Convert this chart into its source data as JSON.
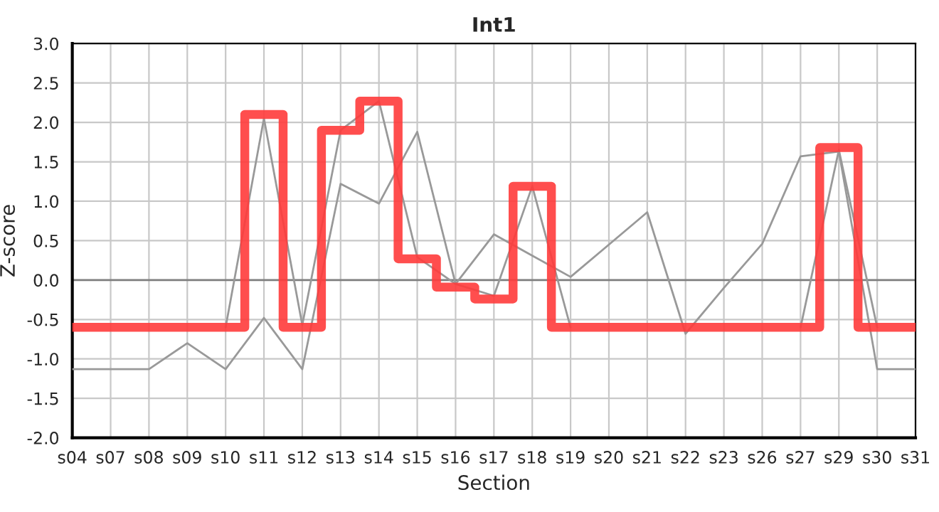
{
  "chart_data": {
    "type": "line",
    "title": "Int1",
    "xlabel": "Section",
    "ylabel": "Z-score",
    "categories": [
      "s04",
      "s07",
      "s08",
      "s09",
      "s10",
      "s11",
      "s12",
      "s13",
      "s14",
      "s15",
      "s16",
      "s17",
      "s18",
      "s19",
      "s20",
      "s21",
      "s22",
      "s23",
      "s26",
      "s27",
      "s29",
      "s30",
      "s31"
    ],
    "series": [
      {
        "color": "#999999",
        "values": [
          -1.13,
          -1.13,
          -1.13,
          -0.8,
          -1.13,
          -0.48,
          -1.13,
          1.22,
          0.97,
          1.88,
          -0.05,
          0.58,
          0.31,
          0.04,
          0.45,
          0.86,
          -0.68,
          -0.1,
          0.46,
          1.57,
          1.63,
          -1.13,
          -1.13
        ]
      },
      {
        "color": "#999999",
        "values": [
          null,
          null,
          null,
          null,
          -0.6,
          2.05,
          -0.57,
          1.9,
          2.27,
          0.29,
          -0.05,
          -0.2,
          1.19,
          -0.6,
          null,
          null,
          null,
          null,
          null,
          -0.6,
          1.65,
          -0.6,
          null
        ]
      },
      {
        "type": "step",
        "color": "#ff3b3b",
        "values": [
          -0.6,
          -0.6,
          -0.6,
          -0.6,
          -0.6,
          2.1,
          -0.6,
          1.9,
          2.27,
          0.27,
          -0.09,
          -0.24,
          1.19,
          -0.6,
          -0.6,
          -0.6,
          -0.6,
          -0.6,
          -0.6,
          -0.6,
          1.68,
          -0.6,
          -0.6
        ]
      }
    ],
    "ylim": [
      -2.0,
      3.0
    ],
    "yticks": [
      {
        "value": -2.0,
        "label": "-2.0"
      },
      {
        "value": -1.5,
        "label": "-1.5"
      },
      {
        "value": -1.0,
        "label": "-1.0"
      },
      {
        "value": -0.5,
        "label": "-0.5"
      },
      {
        "value": 0.0,
        "label": "0.0"
      },
      {
        "value": 0.5,
        "label": "0.5"
      },
      {
        "value": 1.0,
        "label": "1.0"
      },
      {
        "value": 1.5,
        "label": "1.5"
      },
      {
        "value": 2.0,
        "label": "2.0"
      },
      {
        "value": 2.5,
        "label": "2.5"
      },
      {
        "value": 3.0,
        "label": "3.0"
      }
    ],
    "ref_lines": [
      {
        "axis": "y",
        "value": 0,
        "color": "#808080"
      }
    ],
    "grid": true,
    "legend": false,
    "marker": "none",
    "line_style": "solid"
  }
}
